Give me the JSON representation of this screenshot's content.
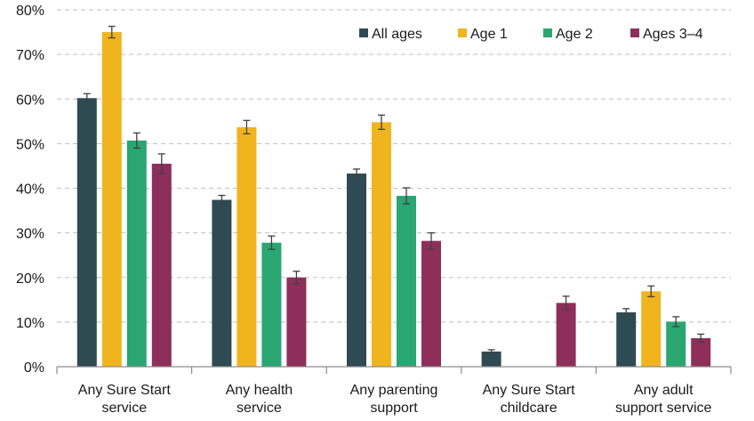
{
  "chart_data": {
    "type": "bar",
    "title": "",
    "xlabel": "",
    "ylabel": "",
    "ylim": [
      0,
      80
    ],
    "yticks": [
      0,
      10,
      20,
      30,
      40,
      50,
      60,
      70,
      80
    ],
    "ytick_suffix": "%",
    "grid": true,
    "legend_position": "top-right",
    "categories": [
      [
        "Any Sure Start",
        "service"
      ],
      [
        "Any health",
        "service"
      ],
      [
        "Any parenting",
        "support"
      ],
      [
        "Any Sure Start",
        "childcare"
      ],
      [
        "Any adult",
        "support service"
      ]
    ],
    "series": [
      {
        "name": "All ages",
        "color": "#2e4a52",
        "values": [
          60.2,
          37.4,
          43.3,
          3.4,
          12.2
        ],
        "errors": [
          1.0,
          1.0,
          1.0,
          0.4,
          0.8
        ]
      },
      {
        "name": "Age 1",
        "color": "#f0b41e",
        "values": [
          75.0,
          53.7,
          54.8,
          null,
          16.9
        ],
        "errors": [
          1.3,
          1.5,
          1.6,
          null,
          1.2
        ]
      },
      {
        "name": "Age 2",
        "color": "#2aa673",
        "values": [
          50.7,
          27.8,
          38.3,
          null,
          10.1
        ],
        "errors": [
          1.7,
          1.5,
          1.8,
          null,
          1.1
        ]
      },
      {
        "name": "Ages 3–4",
        "color": "#8e2f5b",
        "values": [
          45.5,
          20.0,
          28.2,
          14.3,
          6.4
        ],
        "errors": [
          2.2,
          1.4,
          1.8,
          1.5,
          0.9
        ]
      }
    ]
  }
}
